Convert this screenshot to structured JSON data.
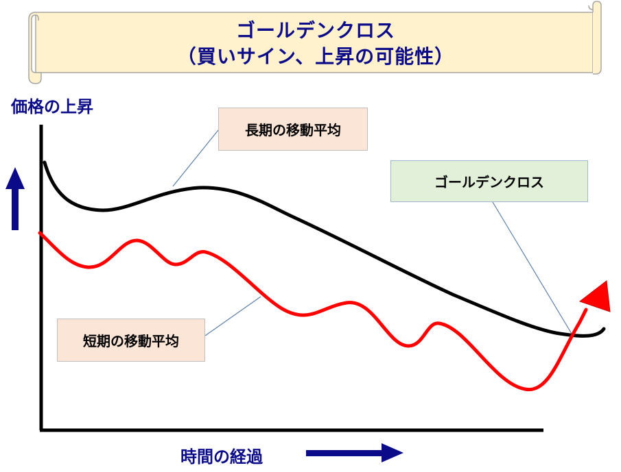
{
  "title": {
    "line1": "ゴールデンクロス",
    "line2": "（買いサイン、上昇の可能性）"
  },
  "axes": {
    "y_label": "価格の上昇",
    "x_label": "時間の経過"
  },
  "callouts": {
    "long_ma": "長期の移動平均",
    "golden_cross": "ゴールデンクロス",
    "short_ma": "短期の移動平均"
  },
  "colors": {
    "title_text": "#0b0b8a",
    "scroll_fill": "#fff2cc",
    "scroll_stroke": "#a5a5a5",
    "long_line": "#000000",
    "short_line": "#ff0000",
    "arrow": "#0b0b8a",
    "callout_leader": "#5b7fa6"
  }
}
